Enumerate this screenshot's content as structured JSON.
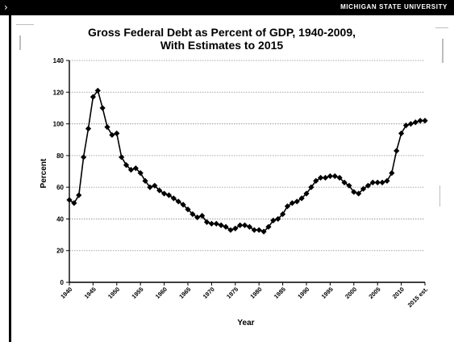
{
  "header": {
    "nav_glyph": "›",
    "brand": "MICHIGAN STATE UNIVERSITY"
  },
  "chart_data": {
    "type": "line",
    "title_lines": [
      "Gross Federal Debt as Percent of GDP, 1940-2009,",
      "With Estimates to 2015"
    ],
    "xlabel": "Year",
    "ylabel": "Percent",
    "ylim": [
      0,
      140
    ],
    "yticks": [
      0,
      20,
      40,
      60,
      80,
      100,
      120,
      140
    ],
    "xlim": [
      1940,
      2015
    ],
    "xticks": [
      1940,
      1945,
      1950,
      1955,
      1960,
      1965,
      1970,
      1975,
      1980,
      1985,
      1990,
      1995,
      2000,
      2005,
      2010,
      2015
    ],
    "xtick_labels": [
      "1940",
      "1945",
      "1950",
      "1955",
      "1960",
      "1965",
      "1970",
      "1975",
      "1980",
      "1985",
      "1990",
      "1995",
      "2000",
      "2005",
      "2010",
      "2015 est."
    ],
    "grid": true,
    "color": "#000000",
    "x": [
      1940,
      1941,
      1942,
      1943,
      1944,
      1945,
      1946,
      1947,
      1948,
      1949,
      1950,
      1951,
      1952,
      1953,
      1954,
      1955,
      1956,
      1957,
      1958,
      1959,
      1960,
      1961,
      1962,
      1963,
      1964,
      1965,
      1966,
      1967,
      1968,
      1969,
      1970,
      1971,
      1972,
      1973,
      1974,
      1975,
      1976,
      1977,
      1978,
      1979,
      1980,
      1981,
      1982,
      1983,
      1984,
      1985,
      1986,
      1987,
      1988,
      1989,
      1990,
      1991,
      1992,
      1993,
      1994,
      1995,
      1996,
      1997,
      1998,
      1999,
      2000,
      2001,
      2002,
      2003,
      2004,
      2005,
      2006,
      2007,
      2008,
      2009,
      2010,
      2011,
      2012,
      2013,
      2014,
      2015
    ],
    "y": [
      52,
      50,
      55,
      79,
      97,
      117,
      121,
      110,
      98,
      93,
      94,
      79,
      74,
      71,
      72,
      69,
      64,
      60,
      61,
      58,
      56,
      55,
      53,
      51,
      49,
      46,
      43,
      41,
      42,
      38,
      37,
      37,
      36,
      35,
      33,
      34,
      36,
      36,
      35,
      33,
      33,
      32,
      35,
      39,
      40,
      43,
      48,
      50,
      51,
      53,
      56,
      60,
      64,
      66,
      66,
      67,
      67,
      66,
      63,
      61,
      57,
      56,
      59,
      61,
      63,
      63,
      63,
      64,
      69,
      83,
      94,
      99,
      100,
      101,
      102,
      102
    ]
  }
}
